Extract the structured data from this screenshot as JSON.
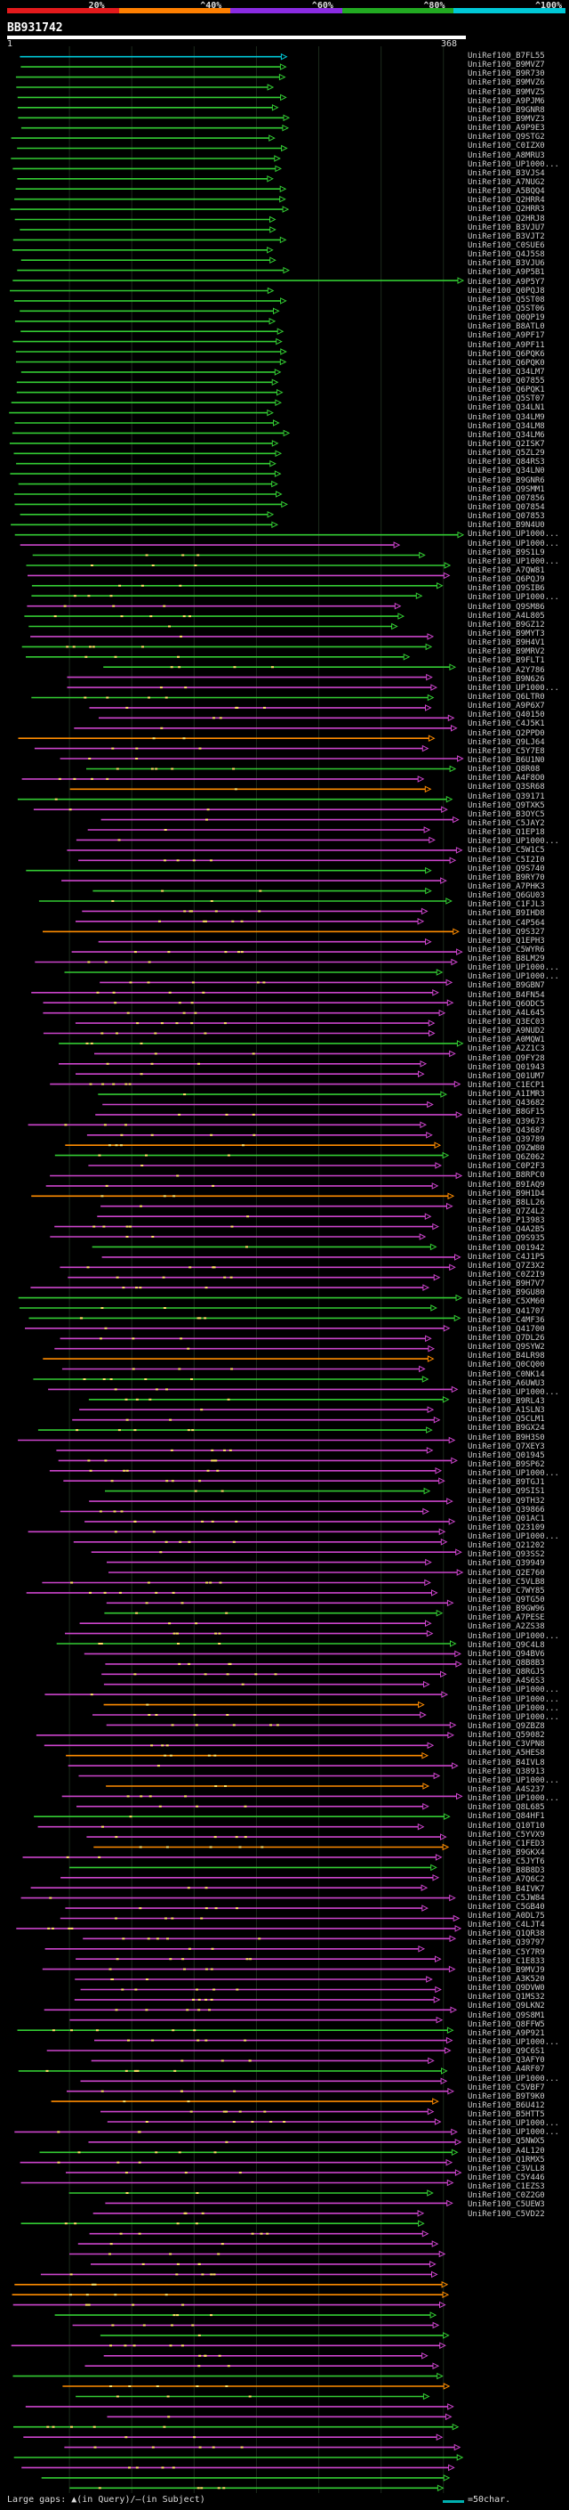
{
  "query": {
    "id": "BB931742",
    "start_label": "1",
    "end_label": "368"
  },
  "scale": [
    {
      "label": "20%",
      "color": "#e31a1c"
    },
    {
      "label": "^40%",
      "color": "#ff7f00"
    },
    {
      "label": "^60%",
      "color": "#8a2be2"
    },
    {
      "label": "^80%",
      "color": "#22aa22"
    },
    {
      "label": "^100%",
      "color": "#00c8d7"
    }
  ],
  "footer": {
    "gaps_text": "Large gaps: ▲(in Query)/–(in Subject)",
    "legend_text": "=50char."
  },
  "chart_data": {
    "type": "alignment",
    "query_length": 368,
    "hits": [
      "UniRef100_B7FL55",
      "UniRef100_B9MVZ7",
      "UniRef100_B9R730",
      "UniRef100_B9MVZ6",
      "UniRef100_B9MVZ5",
      "UniRef100_A9PJM6",
      "UniRef100_B9GNR8",
      "UniRef100_B9MVZ3",
      "UniRef100_A9P9E3",
      "UniRef100_Q9STG2",
      "UniRef100_C0IZX0",
      "UniRef100_A8MRU3",
      "UniRef100_UP1000...",
      "UniRef100_B3VJS4",
      "UniRef100_A7NUG2",
      "UniRef100_A5BQQ4",
      "UniRef100_Q2HRR4",
      "UniRef100_Q2HRR3",
      "UniRef100_Q2HRJ8",
      "UniRef100_B3VJU7",
      "UniRef100_B3VJT2",
      "UniRef100_C0SUE6",
      "UniRef100_Q4J5S8",
      "UniRef100_B3VJU6",
      "UniRef100_A9P5B1",
      "UniRef100_A9P5Y7",
      "UniRef100_Q0PQJ8",
      "UniRef100_Q5ST08",
      "UniRef100_Q5ST06",
      "UniRef100_Q0QP19",
      "UniRef100_B8ATL0",
      "UniRef100_A9PF17",
      "UniRef100_A9PF11",
      "UniRef100_Q6PQK6",
      "UniRef100_Q6PQK0",
      "UniRef100_Q34LM7",
      "UniRef100_Q07855",
      "UniRef100_Q6PQK1",
      "UniRef100_Q5ST07",
      "UniRef100_Q34LN1",
      "UniRef100_Q34LM9",
      "UniRef100_Q34LM8",
      "UniRef100_Q34LM6",
      "UniRef100_Q2ISK7",
      "UniRef100_Q5ZL29",
      "UniRef100_Q84RS3",
      "UniRef100_Q34LN0",
      "UniRef100_B9GNR6",
      "UniRef100_Q9SMM1",
      "UniRef100_Q07856",
      "UniRef100_Q07854",
      "UniRef100_Q07853",
      "UniRef100_B9N4U0",
      "UniRef100_UP1000...",
      "UniRef100_UP1000...",
      "UniRef100_B9S1L9",
      "UniRef100_UP1000...",
      "UniRef100_A7QW81",
      "UniRef100_Q6PQJ9",
      "UniRef100_Q9SIB6",
      "UniRef100_UP1000...",
      "UniRef100_Q9SM86",
      "UniRef100_A4L805",
      "UniRef100_B9GZ12",
      "UniRef100_B9MYT3",
      "UniRef100_B9H4V1",
      "UniRef100_B9MRV2",
      "UniRef100_B9FLT1",
      "UniRef100_A2Y786",
      "UniRef100_B9N626",
      "UniRef100_UP1000...",
      "UniRef100_Q6LTR0",
      "UniRef100_A9P6X7",
      "UniRef100_Q40150",
      "UniRef100_C4J5K1",
      "UniRef100_Q2PPD0",
      "UniRef100_Q9LJ64",
      "UniRef100_C5Y7E8",
      "UniRef100_B6U1N0",
      "UniRef100_Q8R08",
      "UniRef100_A4F8O0",
      "UniRef100_Q3SR68",
      "UniRef100_Q39171",
      "UniRef100_Q9TXK5",
      "UniRef100_B3OYC5",
      "UniRef100_C5JAY2",
      "UniRef100_Q1EP18",
      "UniRef100_UP1000...",
      "UniRef100_C5W1C5",
      "UniRef100_C5I2I0",
      "UniRef100_Q9S740",
      "UniRef100_B9RY70",
      "UniRef100_A7PHK3",
      "UniRef100_Q6GU03",
      "UniRef100_C1FJL3",
      "UniRef100_B9IHD8",
      "UniRef100_C4P564",
      "UniRef100_Q9S327",
      "UniRef100_Q1EPH3",
      "UniRef100_C5WYR6",
      "UniRef100_B8LM29",
      "UniRef100_UP1000...",
      "UniRef100_UP1000...",
      "UniRef100_B9GBN7",
      "UniRef100_B4FN54",
      "UniRef100_Q6ODC5",
      "UniRef100_A4L645",
      "UniRef100_Q3EC03",
      "UniRef100_A9NUD2",
      "UniRef100_A0MQW1",
      "UniRef100_A2Z1C3",
      "UniRef100_Q9FY28",
      "UniRef100_Q01943",
      "UniRef100_Q01UM7",
      "UniRef100_C1ECP1",
      "UniRef100_A1IMR3",
      "UniRef100_Q43682",
      "UniRef100_B8GF15",
      "UniRef100_Q39673",
      "UniRef100_Q43687",
      "UniRef100_Q39789",
      "UniRef100_Q9ZW80",
      "UniRef100_Q6Z062",
      "UniRef100_C0P2F3",
      "UniRef100_B8RPC0",
      "UniRef100_B9IAQ9",
      "UniRef100_B9H1D4",
      "UniRef100_B8LL26",
      "UniRef100_Q7Z4L2",
      "UniRef100_P13983",
      "UniRef100_Q4A2B5",
      "UniRef100_Q9S935",
      "UniRef100_Q01942",
      "UniRef100_C4J1P5",
      "UniRef100_Q7Z3X2",
      "UniRef100_C0Z2I9",
      "UniRef100_B9H7V7",
      "UniRef100_B9GU80",
      "UniRef100_C5XM60",
      "UniRef100_Q41707",
      "UniRef100_C4MF36",
      "UniRef100_Q41700",
      "UniRef100_Q7DL26",
      "UniRef100_Q9SYW2",
      "UniRef100_B4LR98",
      "UniRef100_Q0CQ00",
      "UniRef100_C0NK14",
      "UniRef100_A6UWU3",
      "UniRef100_UP1000...",
      "UniRef100_B9RL43",
      "UniRef100_A1SLN3",
      "UniRef100_Q5CLM1",
      "UniRef100_B9GX24",
      "UniRef100_B9H3S0",
      "UniRef100_Q7XEY3",
      "UniRef100_Q01945",
      "UniRef100_B9SP62",
      "UniRef100_UP1000...",
      "UniRef100_B9TGJ1",
      "UniRef100_Q9SIS1",
      "UniRef100_Q9TH32",
      "UniRef100_Q39866",
      "UniRef100_Q01AC1",
      "UniRef100_Q23109",
      "UniRef100_UP1000...",
      "UniRef100_Q21202",
      "UniRef100_Q93SS2",
      "UniRef100_Q39949",
      "UniRef100_Q2E760",
      "UniRef100_C5VLB8",
      "UniRef100_C7WY85",
      "UniRef100_Q9TG50",
      "UniRef100_B9GW96",
      "UniRef100_A7PESE",
      "UniRef100_A2ZS38",
      "UniRef100_UP1000...",
      "UniRef100_Q9C4L8",
      "UniRef100_Q94BV6",
      "UniRef100_Q8B8B3",
      "UniRef100_Q8RGJ5",
      "UniRef100_A4S6S3",
      "UniRef100_UP1000...",
      "UniRef100_UP1000...",
      "UniRef100_UP1000...",
      "UniRef100_UP1000...",
      "UniRef100_Q9ZBZ8",
      "UniRef100_Q59082",
      "UniRef100_C3VPN8",
      "UniRef100_A5HES8",
      "UniRef100_B4IVL8",
      "UniRef100_Q38913",
      "UniRef100_UP1000...",
      "UniRef100_A4S237",
      "UniRef100_UP1000...",
      "UniRef100_Q8L685",
      "UniRef100_Q84HF1",
      "UniRef100_Q10T10",
      "UniRef100_C5YVX9",
      "UniRef100_C1FED3",
      "UniRef100_B9GKX4",
      "UniRef100_C5JYT6",
      "UniRef100_B8B8D3",
      "UniRef100_A7Q6C2",
      "UniRef100_B4IVK7",
      "UniRef100_C5JW84",
      "UniRef100_C5GB40",
      "UniRef100_A0DL75",
      "UniRef100_C4LJT4",
      "UniRef100_Q1QR38",
      "UniRef100_Q39797",
      "UniRef100_C5Y7R9",
      "UniRef100_C1E833",
      "UniRef100_B9MVJ9",
      "UniRef100_A3K520",
      "UniRef100_Q9DVW0",
      "UniRef100_Q1MS32",
      "UniRef100_Q9LKN2",
      "UniRef100_Q9S8M1",
      "UniRef100_Q8FFW5",
      "UniRef100_A9P921",
      "UniRef100_UP1000...",
      "UniRef100_Q9C6S1",
      "UniRef100_Q3AFY0",
      "UniRef100_A4RF07",
      "UniRef100_UP1000...",
      "UniRef100_C5VBF7",
      "UniRef100_B9T9K0",
      "UniRef100_B6U412",
      "UniRef100_B5HTT5",
      "UniRef100_UP1000...",
      "UniRef100_UP1000...",
      "UniRef100_Q5NWX5",
      "UniRef100_A4L120",
      "UniRef100_Q1RMX5",
      "UniRef100_C3VLL8",
      "UniRef100_C5Y446",
      "UniRef100_C1EZS3",
      "UniRef100_C0Z2G0",
      "UniRef100_C5UEW3",
      "UniRef100_C5VD22"
    ]
  }
}
